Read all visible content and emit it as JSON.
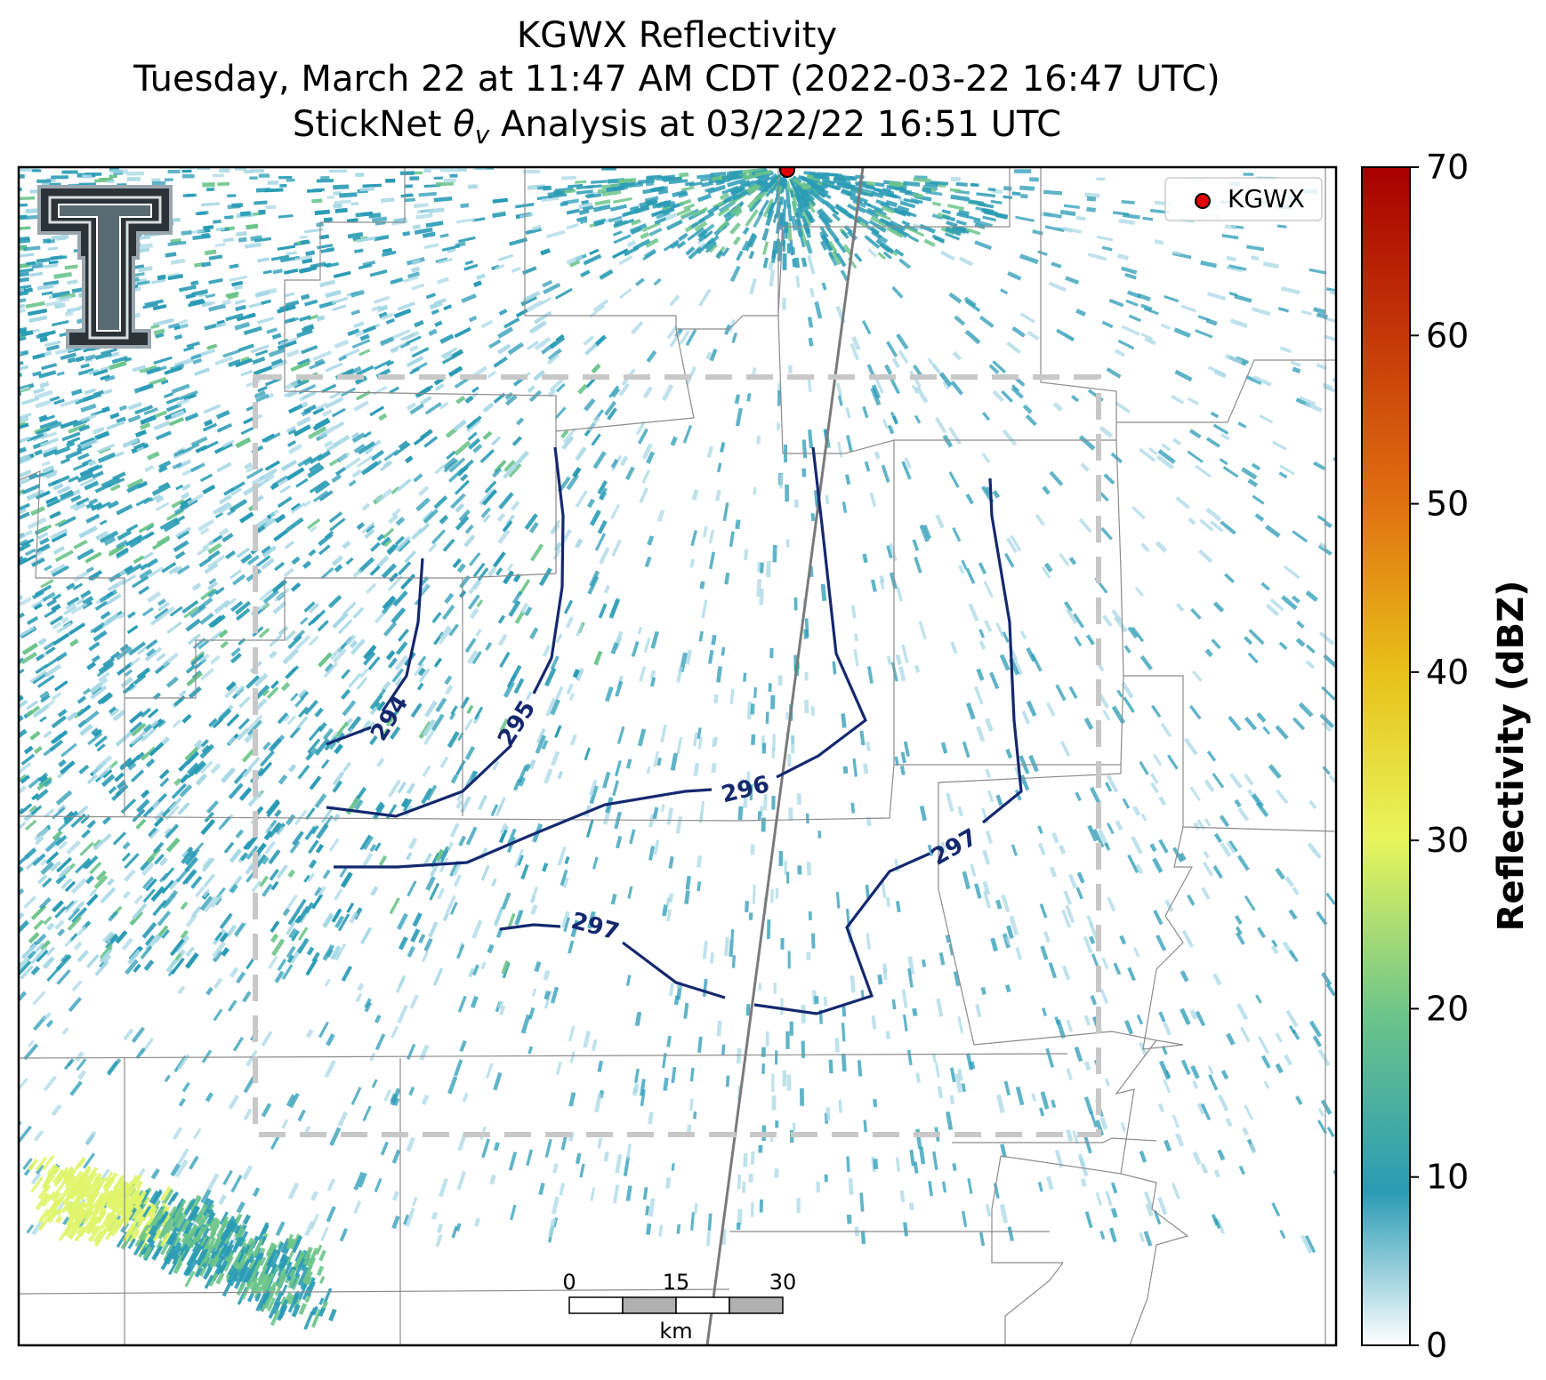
{
  "title": {
    "line1": "KGWX Reflectivity",
    "line2": "Tuesday, March 22 at 11:47 AM CDT (2022-03-22 16:47 UTC)",
    "line3_prefix": "StickNet ",
    "line3_suffix": " Analysis at 03/22/22 16:51 UTC"
  },
  "logo": {
    "text": "T",
    "description": "Texas Tech double-T logo"
  },
  "legend": {
    "label": "KGWX",
    "marker_color": "#e00000"
  },
  "radar_site": {
    "name": "KGWX",
    "color": "#e00000"
  },
  "colorbar": {
    "label": "Reflectivity (dBZ)",
    "ticks": [
      "0",
      "10",
      "20",
      "30",
      "40",
      "50",
      "60",
      "70"
    ],
    "min": 0,
    "max": 70,
    "colors": [
      "#ffffff",
      "#2a9bb5",
      "#6cc48a",
      "#e8f55c",
      "#e8c11a",
      "#e06e10",
      "#a80000"
    ]
  },
  "contours": {
    "color": "#14286e",
    "labels": [
      "294",
      "295",
      "296",
      "297",
      "297"
    ]
  },
  "scale_bar": {
    "ticks": [
      "0",
      "15",
      "30"
    ],
    "unit": "km"
  },
  "colors": {
    "echo_primary": "#2a9bb5",
    "echo_light": "#a9d8e6",
    "echo_green": "#6cc48a",
    "echo_yellow": "#e0f56a",
    "county_lines": "#8c8c8c",
    "interstate": "#7a7a7a",
    "domain_box": "#c8c8c8"
  }
}
